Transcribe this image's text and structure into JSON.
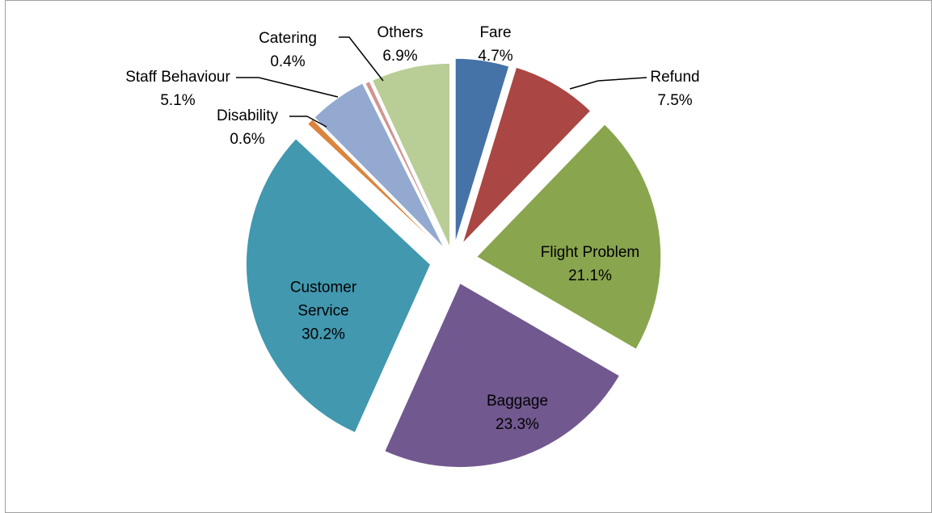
{
  "chart_data": {
    "type": "pie",
    "categories": [
      "Fare",
      "Refund",
      "Flight Problem",
      "Baggage",
      "Customer Service",
      "Disability",
      "Staff Behaviour",
      "Catering",
      "Others"
    ],
    "values": [
      4.7,
      7.5,
      21.1,
      23.3,
      30.2,
      0.6,
      5.1,
      0.4,
      6.9
    ],
    "value_labels": [
      "4.7%",
      "7.5%",
      "21.1%",
      "23.3%",
      "30.2%",
      "0.6%",
      "5.1%",
      "0.4%",
      "6.9%"
    ],
    "colors": [
      "#4572a7",
      "#aa4643",
      "#89a54e",
      "#71588f",
      "#4198af",
      "#db843d",
      "#93a9cf",
      "#d19392",
      "#b9cd96"
    ],
    "exploded": true
  }
}
